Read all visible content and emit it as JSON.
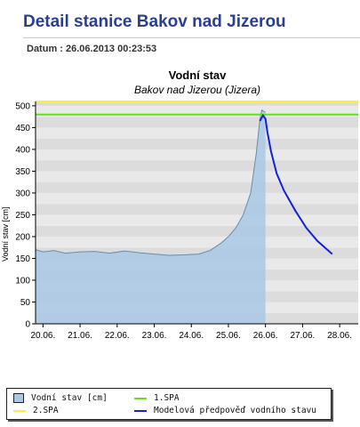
{
  "header": {
    "title": "Detail stanice Bakov nad Jizerou",
    "datum": "Datum : 26.06.2013 00:23:53"
  },
  "chart_data": {
    "type": "area",
    "title": "Vodní stav",
    "subtitle": "Bakov nad Jizerou (Jizera)",
    "ylabel": "Vodní stav [cm]",
    "xlabel": "",
    "x_ticks": [
      "20.06.",
      "21.06.",
      "22.06.",
      "23.06.",
      "24.06.",
      "25.06.",
      "26.06.",
      "27.06.",
      "28.06."
    ],
    "ylim": [
      0,
      510
    ],
    "y_ticks": [
      0,
      50,
      100,
      150,
      200,
      250,
      300,
      350,
      400,
      450,
      500
    ],
    "grid": "alternating horizontal bands",
    "thresholds": [
      {
        "name": "1.SPA",
        "value": 480,
        "color": "#66dd22"
      },
      {
        "name": "2.SPA",
        "value": 510,
        "color": "#ffee33"
      }
    ],
    "series": [
      {
        "name": "Vodní stav [cm]",
        "style": "area",
        "color": "#a9c8e6",
        "line_color": "#6a8caa",
        "x": [
          19.8,
          20.0,
          20.3,
          20.6,
          21.0,
          21.4,
          21.8,
          22.2,
          22.6,
          23.0,
          23.4,
          23.8,
          24.2,
          24.5,
          24.8,
          25.0,
          25.2,
          25.4,
          25.6,
          25.75,
          25.85,
          25.9,
          26.0
        ],
        "values": [
          170,
          165,
          168,
          162,
          165,
          166,
          162,
          167,
          163,
          160,
          157,
          158,
          160,
          168,
          185,
          200,
          220,
          250,
          300,
          390,
          470,
          490,
          485
        ]
      },
      {
        "name": "Modelová předpověď vodního stavu",
        "style": "line",
        "color": "#1122dd",
        "x": [
          25.85,
          25.93,
          26.0,
          26.05,
          26.15,
          26.3,
          26.5,
          26.8,
          27.1,
          27.4,
          27.8
        ],
        "values": [
          465,
          478,
          470,
          440,
          395,
          345,
          305,
          260,
          220,
          190,
          160
        ]
      }
    ],
    "legend": {
      "position": "bottom",
      "items": [
        "Vodní stav [cm]",
        "1.SPA",
        "2.SPA",
        "Modelová předpověď vodního stavu"
      ]
    }
  }
}
